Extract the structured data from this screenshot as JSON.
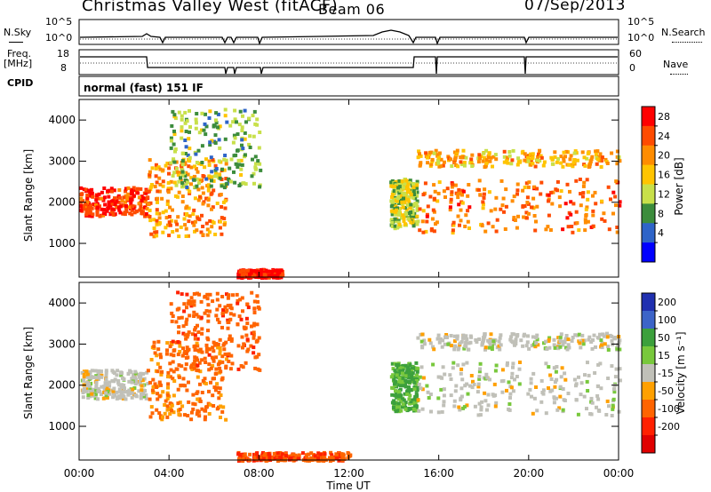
{
  "header": {
    "station": "Christmas Valley West (fitACF)",
    "beam": "Beam 06",
    "date": "07/Sep/2013"
  },
  "noise_panel": {
    "left_label": "N.Sky",
    "right_label": "N.Search",
    "left_ticks": [
      "10^5",
      "10^0"
    ],
    "right_ticks": [
      "10^5",
      "10^0"
    ]
  },
  "freq_panel": {
    "left_label_1": "Freq.",
    "left_label_2": "[MHz]",
    "right_label": "Nave",
    "left_ticks": [
      "18",
      "8"
    ],
    "right_ticks": [
      "60",
      "0"
    ]
  },
  "cpid_panel": {
    "label": "CPID",
    "text": "normal (fast) 151 IF"
  },
  "power_panel": {
    "ylabel": "Slant Range [km]",
    "yticks": [
      "4000",
      "3000",
      "2000",
      "1000"
    ],
    "colorbar_label": "Power [dB]",
    "colorbar_ticks": [
      "28",
      "24",
      "20",
      "16",
      "12",
      "8",
      "4"
    ],
    "colors": [
      "#ff0000",
      "#ff4b00",
      "#ff8c00",
      "#ffc400",
      "#c8e04a",
      "#3c8c3c",
      "#2e64c8",
      "#0000ff"
    ]
  },
  "velocity_panel": {
    "ylabel": "Slant Range [km]",
    "yticks": [
      "4000",
      "3000",
      "2000",
      "1000"
    ],
    "colorbar_label": "Velocity [m s⁻¹]",
    "colorbar_ticks": [
      "200",
      "100",
      "50",
      "15",
      "-15",
      "-50",
      "-100",
      "-200"
    ],
    "colors": [
      "#2030b0",
      "#3c64c8",
      "#3ca03c",
      "#78c83c",
      "#c0c0b8",
      "#ffa000",
      "#ff6400",
      "#ff2000",
      "#e00000"
    ]
  },
  "xaxis": {
    "label": "Time UT",
    "ticks": [
      "00:00",
      "04:00",
      "08:00",
      "12:00",
      "16:00",
      "20:00",
      "00:00"
    ]
  },
  "chart_data": [
    {
      "type": "heatmap",
      "title": "Power [dB]",
      "xlabel": "Time UT",
      "ylabel": "Slant Range [km]",
      "xlim": [
        0,
        24
      ],
      "ylim": [
        180,
        4500
      ],
      "clim": [
        0,
        30
      ],
      "echo_bands": [
        {
          "t": [
            0,
            3
          ],
          "range": [
            1700,
            2400
          ],
          "power": 26
        },
        {
          "t": [
            3,
            6.5
          ],
          "range": [
            1200,
            3100
          ],
          "power": 20
        },
        {
          "t": [
            4,
            8
          ],
          "range": [
            2400,
            4300
          ],
          "power": 10
        },
        {
          "t": [
            13.8,
            15
          ],
          "range": [
            1400,
            2600
          ],
          "power": 12
        },
        {
          "t": [
            15,
            24
          ],
          "range": [
            1300,
            2600
          ],
          "power": 22
        },
        {
          "t": [
            15,
            24
          ],
          "range": [
            2900,
            3300
          ],
          "power": 18
        },
        {
          "t": [
            7,
            9
          ],
          "range": [
            200,
            400
          ],
          "power": 28
        }
      ]
    },
    {
      "type": "heatmap",
      "title": "Velocity [m s⁻¹]",
      "xlabel": "Time UT",
      "ylabel": "Slant Range [km]",
      "xlim": [
        0,
        24
      ],
      "ylim": [
        180,
        4500
      ],
      "clim": [
        -200,
        200
      ],
      "echo_bands": [
        {
          "t": [
            0,
            3
          ],
          "range": [
            1700,
            2400
          ],
          "velocity": 0
        },
        {
          "t": [
            3,
            6.5
          ],
          "range": [
            1200,
            3100
          ],
          "velocity": -40
        },
        {
          "t": [
            4,
            8
          ],
          "range": [
            2400,
            4300
          ],
          "velocity": -60
        },
        {
          "t": [
            13.8,
            15
          ],
          "range": [
            1400,
            2600
          ],
          "velocity": 40
        },
        {
          "t": [
            15,
            24
          ],
          "range": [
            1300,
            2600
          ],
          "velocity": 0
        },
        {
          "t": [
            15,
            24
          ],
          "range": [
            2900,
            3300
          ],
          "velocity": 0
        },
        {
          "t": [
            7,
            12
          ],
          "range": [
            200,
            400
          ],
          "velocity": -70
        }
      ]
    }
  ]
}
